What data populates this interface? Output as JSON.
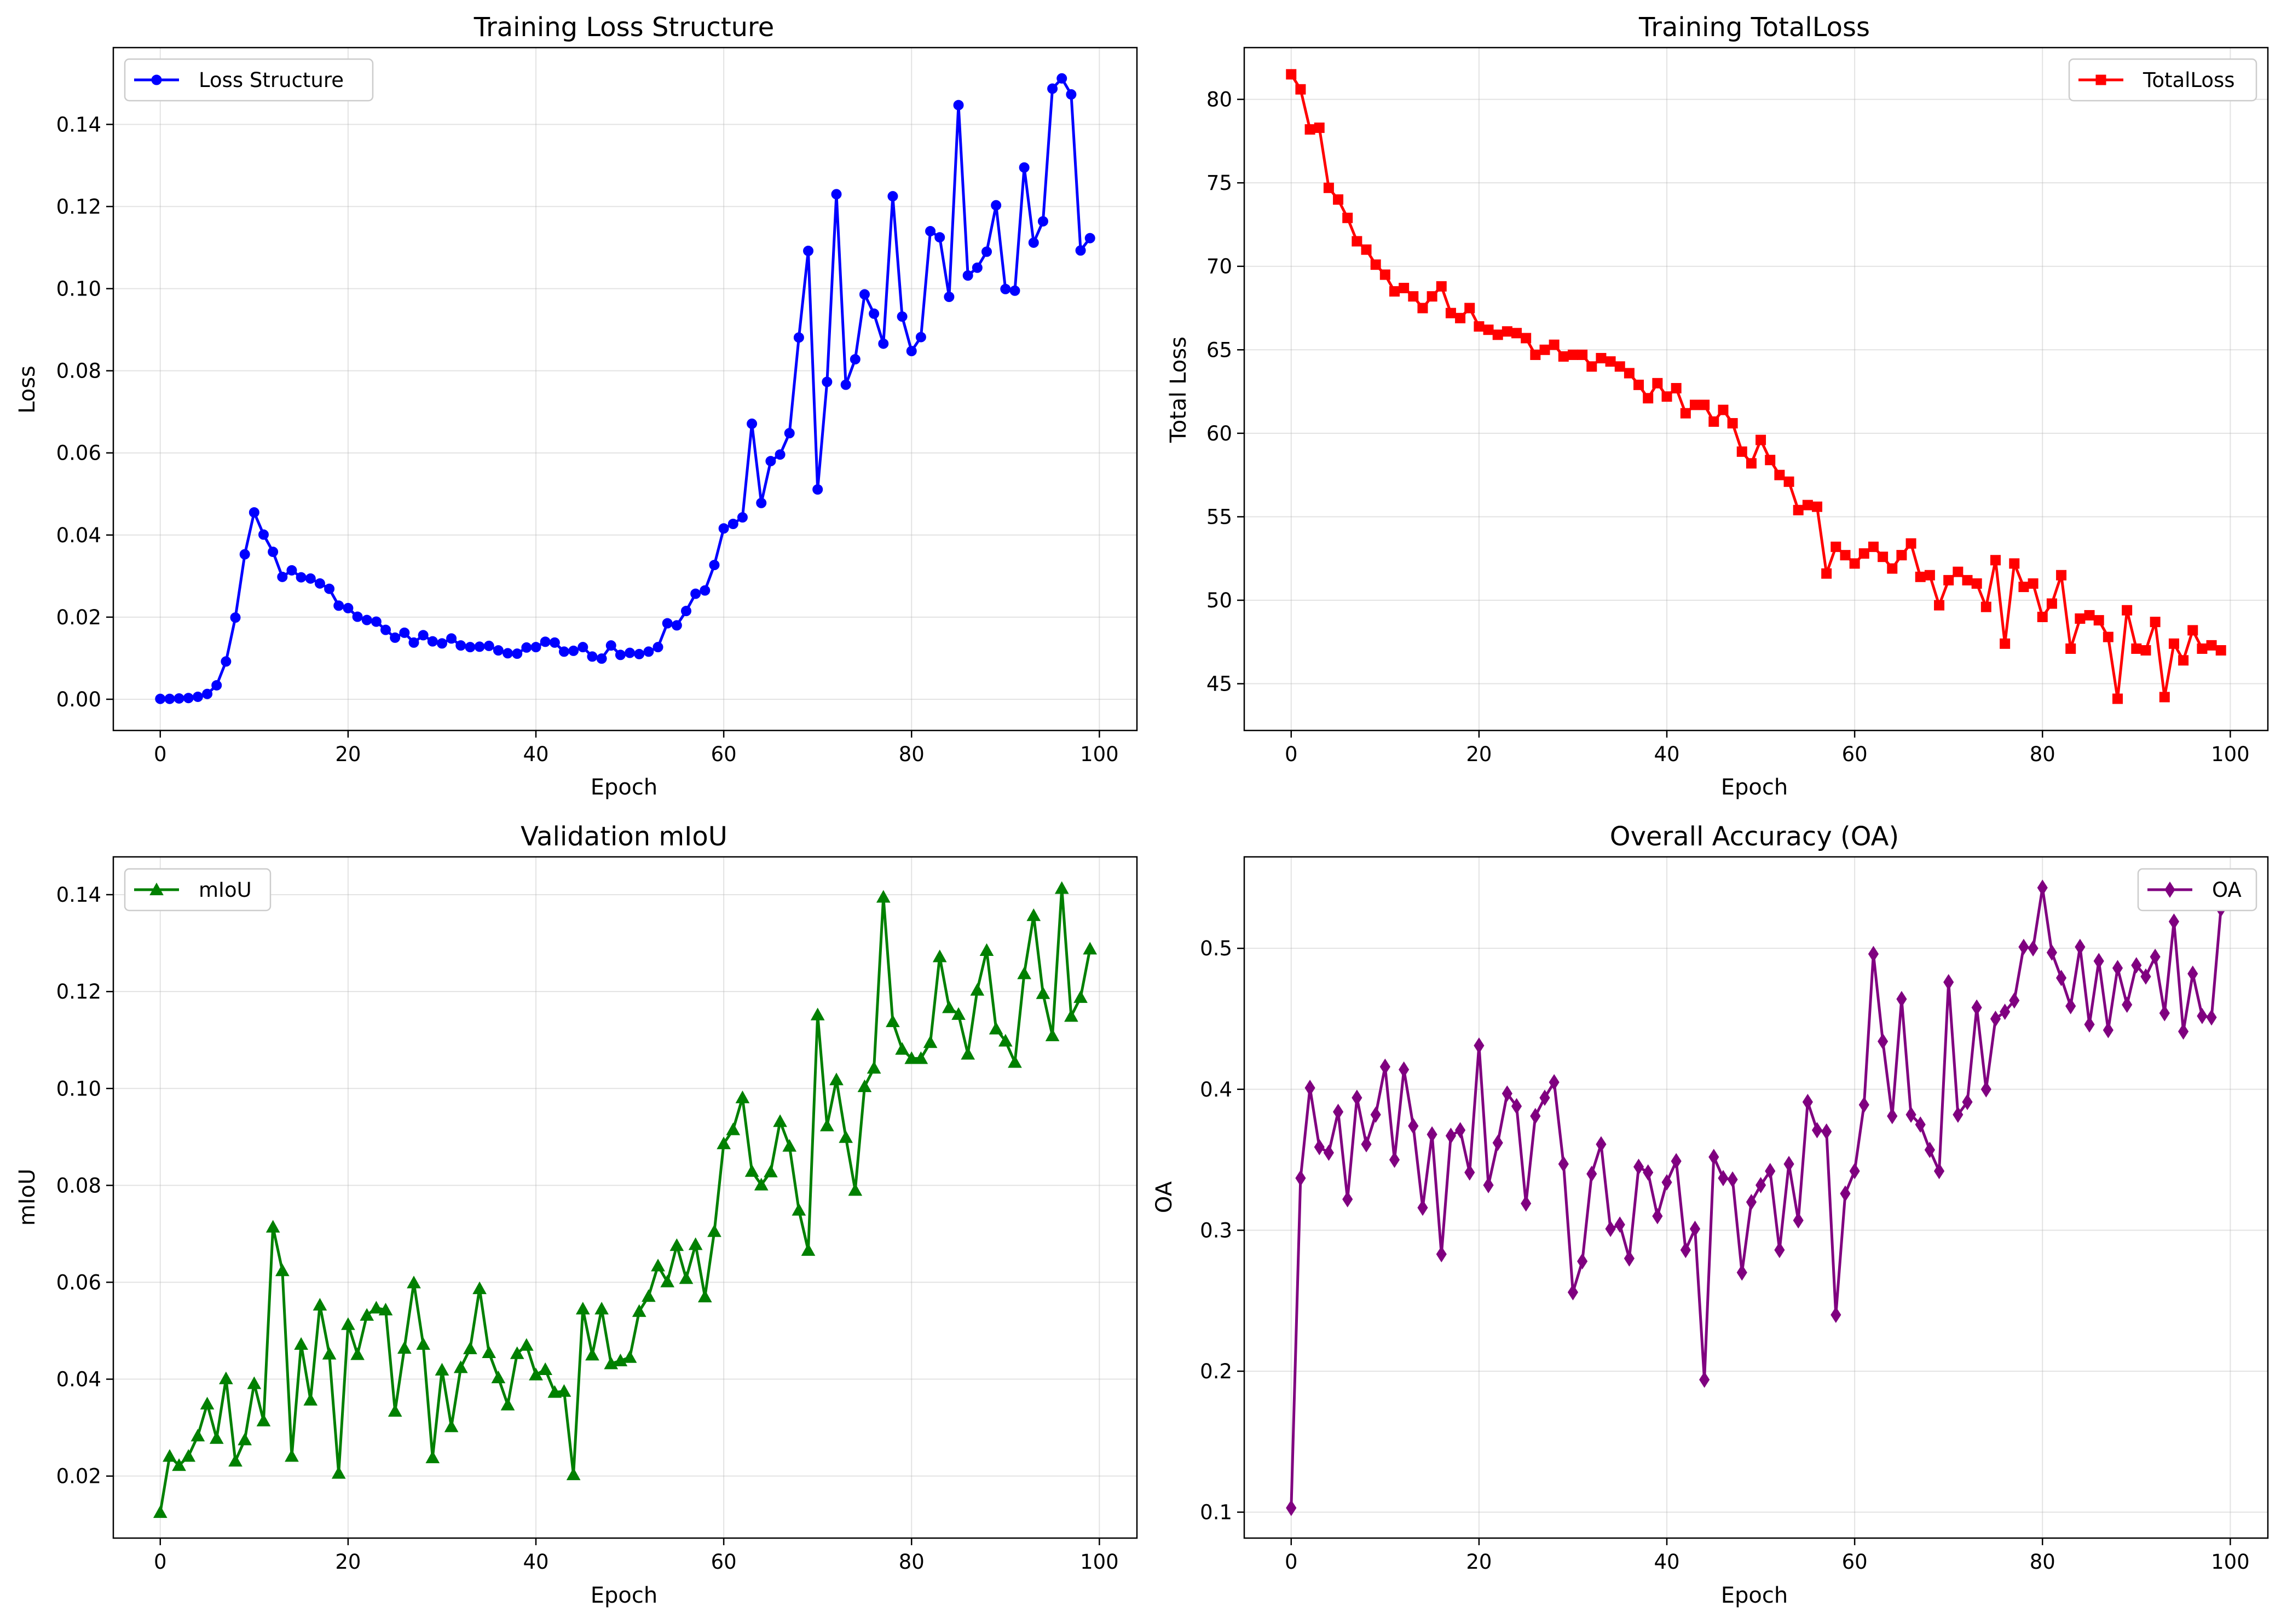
{
  "chart_data": [
    {
      "id": "loss_structure",
      "type": "line",
      "title": "Training Loss Structure",
      "xlabel": "Epoch",
      "ylabel": "Loss",
      "xlim": [
        -5,
        104
      ],
      "ylim": [
        -0.0076,
        0.1587
      ],
      "xticks": [
        0,
        20,
        40,
        60,
        80,
        100
      ],
      "xtick_labels": [
        "0",
        "20",
        "40",
        "60",
        "80",
        "100"
      ],
      "yticks": [
        0,
        0.02,
        0.04,
        0.06,
        0.08,
        0.1,
        0.12,
        0.14
      ],
      "ytick_labels": [
        "0.00",
        "0.02",
        "0.04",
        "0.06",
        "0.08",
        "0.10",
        "0.12",
        "0.14"
      ],
      "grid": true,
      "legend": "upper left",
      "series": [
        {
          "name": "Loss Structure",
          "color": "#0000ff",
          "marker": "circle",
          "x": [
            0,
            1,
            2,
            3,
            4,
            5,
            6,
            7,
            8,
            9,
            10,
            11,
            12,
            13,
            14,
            15,
            16,
            17,
            18,
            19,
            20,
            21,
            22,
            23,
            24,
            25,
            26,
            27,
            28,
            29,
            30,
            31,
            32,
            33,
            34,
            35,
            36,
            37,
            38,
            39,
            40,
            41,
            42,
            43,
            44,
            45,
            46,
            47,
            48,
            49,
            50,
            51,
            52,
            53,
            54,
            55,
            56,
            57,
            58,
            59,
            60,
            61,
            62,
            63,
            64,
            65,
            66,
            67,
            68,
            69,
            70,
            71,
            72,
            73,
            74,
            75,
            76,
            77,
            78,
            79,
            80,
            81,
            82,
            83,
            84,
            85,
            86,
            87,
            88,
            89,
            90,
            91,
            92,
            93,
            94,
            95,
            96,
            97,
            98,
            99
          ],
          "y": [
            0.0001,
            0.0001,
            0.0002,
            0.0003,
            0.0006,
            0.0013,
            0.0034,
            0.0092,
            0.0199,
            0.0353,
            0.0455,
            0.0401,
            0.0359,
            0.0298,
            0.0314,
            0.0297,
            0.0294,
            0.0282,
            0.0269,
            0.0228,
            0.0222,
            0.0201,
            0.0193,
            0.0189,
            0.0169,
            0.015,
            0.0162,
            0.0138,
            0.0156,
            0.0141,
            0.0136,
            0.0148,
            0.0131,
            0.0127,
            0.0128,
            0.013,
            0.0119,
            0.0112,
            0.0111,
            0.0126,
            0.0127,
            0.014,
            0.0138,
            0.0116,
            0.0118,
            0.0127,
            0.0104,
            0.0099,
            0.0131,
            0.0108,
            0.0113,
            0.011,
            0.0116,
            0.0127,
            0.0185,
            0.018,
            0.0215,
            0.0257,
            0.0265,
            0.0327,
            0.0416,
            0.0427,
            0.0443,
            0.0671,
            0.0478,
            0.058,
            0.0596,
            0.0648,
            0.0881,
            0.1092,
            0.0511,
            0.0773,
            0.123,
            0.0766,
            0.0828,
            0.0986,
            0.0939,
            0.0866,
            0.1225,
            0.0932,
            0.0848,
            0.0882,
            0.114,
            0.1125,
            0.098,
            0.1447,
            0.1032,
            0.1051,
            0.109,
            0.1203,
            0.0999,
            0.0995,
            0.1295,
            0.1112,
            0.1164,
            0.1487,
            0.1512,
            0.1473,
            0.1093,
            0.1123
          ]
        }
      ]
    },
    {
      "id": "total_loss",
      "type": "line",
      "title": "Training TotalLoss",
      "xlabel": "Epoch",
      "ylabel": "Total Loss",
      "xlim": [
        -5,
        104
      ],
      "ylim": [
        42.2,
        83.1
      ],
      "xticks": [
        0,
        20,
        40,
        60,
        80,
        100
      ],
      "xtick_labels": [
        "0",
        "20",
        "40",
        "60",
        "80",
        "100"
      ],
      "yticks": [
        45,
        50,
        55,
        60,
        65,
        70,
        75,
        80
      ],
      "ytick_labels": [
        "45",
        "50",
        "55",
        "60",
        "65",
        "70",
        "75",
        "80"
      ],
      "grid": true,
      "legend": "upper right",
      "series": [
        {
          "name": "TotalLoss",
          "color": "#ff0000",
          "marker": "square",
          "x": [
            0,
            1,
            2,
            3,
            4,
            5,
            6,
            7,
            8,
            9,
            10,
            11,
            12,
            13,
            14,
            15,
            16,
            17,
            18,
            19,
            20,
            21,
            22,
            23,
            24,
            25,
            26,
            27,
            28,
            29,
            30,
            31,
            32,
            33,
            34,
            35,
            36,
            37,
            38,
            39,
            40,
            41,
            42,
            43,
            44,
            45,
            46,
            47,
            48,
            49,
            50,
            51,
            52,
            53,
            54,
            55,
            56,
            57,
            58,
            59,
            60,
            61,
            62,
            63,
            64,
            65,
            66,
            67,
            68,
            69,
            70,
            71,
            72,
            73,
            74,
            75,
            76,
            77,
            78,
            79,
            80,
            81,
            82,
            83,
            84,
            85,
            86,
            87,
            88,
            89,
            90,
            91,
            92,
            93,
            94,
            95,
            96,
            97,
            98,
            99
          ],
          "y": [
            81.5,
            80.6,
            78.2,
            78.3,
            74.7,
            74.0,
            72.9,
            71.5,
            71.0,
            70.1,
            69.5,
            68.5,
            68.7,
            68.2,
            67.5,
            68.2,
            68.8,
            67.2,
            66.9,
            67.5,
            66.4,
            66.2,
            65.9,
            66.1,
            66.0,
            65.7,
            64.7,
            65.0,
            65.3,
            64.6,
            64.7,
            64.7,
            64.0,
            64.5,
            64.3,
            64.0,
            63.6,
            62.9,
            62.1,
            63.0,
            62.2,
            62.7,
            61.2,
            61.7,
            61.7,
            60.7,
            61.4,
            60.6,
            58.9,
            58.2,
            59.6,
            58.4,
            57.5,
            57.1,
            55.4,
            55.7,
            55.6,
            51.6,
            53.2,
            52.7,
            52.2,
            52.8,
            53.2,
            52.6,
            51.9,
            52.7,
            53.4,
            51.4,
            51.5,
            49.7,
            51.2,
            51.7,
            51.2,
            51.0,
            49.6,
            52.4,
            47.4,
            52.2,
            50.8,
            51.0,
            49.0,
            49.8,
            51.5,
            47.1,
            48.9,
            49.1,
            48.8,
            47.8,
            44.1,
            49.4,
            47.1,
            47.0,
            48.7,
            44.2,
            47.4,
            46.4,
            48.2,
            47.1,
            47.3,
            47.0
          ]
        }
      ]
    },
    {
      "id": "miou",
      "type": "line",
      "title": "Validation mIoU",
      "xlabel": "Epoch",
      "ylabel": "mIoU",
      "xlim": [
        -5,
        104
      ],
      "ylim": [
        0.0072,
        0.1478
      ],
      "xticks": [
        0,
        20,
        40,
        60,
        80,
        100
      ],
      "xtick_labels": [
        "0",
        "20",
        "40",
        "60",
        "80",
        "100"
      ],
      "yticks": [
        0.02,
        0.04,
        0.06,
        0.08,
        0.1,
        0.12,
        0.14
      ],
      "ytick_labels": [
        "0.02",
        "0.04",
        "0.06",
        "0.08",
        "0.10",
        "0.12",
        "0.14"
      ],
      "grid": true,
      "legend": "upper left",
      "series": [
        {
          "name": "mIoU",
          "color": "#008000",
          "marker": "triangle",
          "x": [
            0,
            1,
            2,
            3,
            4,
            5,
            6,
            7,
            8,
            9,
            10,
            11,
            12,
            13,
            14,
            15,
            16,
            17,
            18,
            19,
            20,
            21,
            22,
            23,
            24,
            25,
            26,
            27,
            28,
            29,
            30,
            31,
            32,
            33,
            34,
            35,
            36,
            37,
            38,
            39,
            40,
            41,
            42,
            43,
            44,
            45,
            46,
            47,
            48,
            49,
            50,
            51,
            52,
            53,
            54,
            55,
            56,
            57,
            58,
            59,
            60,
            61,
            62,
            63,
            64,
            65,
            66,
            67,
            68,
            69,
            70,
            71,
            72,
            73,
            74,
            75,
            76,
            77,
            78,
            79,
            80,
            81,
            82,
            83,
            84,
            85,
            86,
            87,
            88,
            89,
            90,
            91,
            92,
            93,
            94,
            95,
            96,
            97,
            98,
            99
          ],
          "y": [
            0.0125,
            0.0241,
            0.0222,
            0.0241,
            0.0283,
            0.0349,
            0.0278,
            0.0401,
            0.0231,
            0.0275,
            0.0391,
            0.0314,
            0.0714,
            0.0624,
            0.0241,
            0.0472,
            0.0357,
            0.0553,
            0.0452,
            0.0206,
            0.0513,
            0.0451,
            0.0532,
            0.0547,
            0.0543,
            0.0334,
            0.0464,
            0.0599,
            0.0472,
            0.0238,
            0.0419,
            0.0302,
            0.0424,
            0.0463,
            0.0587,
            0.0455,
            0.0403,
            0.0347,
            0.0453,
            0.047,
            0.0409,
            0.042,
            0.0373,
            0.0375,
            0.0203,
            0.0545,
            0.045,
            0.0545,
            0.0432,
            0.0438,
            0.0445,
            0.054,
            0.0571,
            0.0634,
            0.0601,
            0.0676,
            0.0608,
            0.0678,
            0.057,
            0.0705,
            0.0886,
            0.0915,
            0.0981,
            0.0829,
            0.0801,
            0.0828,
            0.0932,
            0.0881,
            0.0749,
            0.0666,
            0.1152,
            0.0923,
            0.1018,
            0.0899,
            0.079,
            0.1004,
            0.1042,
            0.1395,
            0.1138,
            0.1081,
            0.1062,
            0.1062,
            0.1095,
            0.1272,
            0.1167,
            0.1153,
            0.1071,
            0.1203,
            0.1285,
            0.1123,
            0.1098,
            0.1054,
            0.1237,
            0.1357,
            0.1196,
            0.1109,
            0.1413,
            0.1149,
            0.1188,
            0.1288
          ]
        }
      ]
    },
    {
      "id": "oa",
      "type": "line",
      "title": "Overall Accuracy (OA)",
      "xlabel": "Epoch",
      "ylabel": "OA",
      "xlim": [
        -5,
        104
      ],
      "ylim": [
        0.0816,
        0.5649
      ],
      "xticks": [
        0,
        20,
        40,
        60,
        80,
        100
      ],
      "xtick_labels": [
        "0",
        "20",
        "40",
        "60",
        "80",
        "100"
      ],
      "yticks": [
        0.1,
        0.2,
        0.3,
        0.4,
        0.5
      ],
      "ytick_labels": [
        "0.1",
        "0.2",
        "0.3",
        "0.4",
        "0.5"
      ],
      "grid": true,
      "legend": "upper right",
      "series": [
        {
          "name": "OA",
          "color": "#800080",
          "marker": "diamond",
          "x": [
            0,
            1,
            2,
            3,
            4,
            5,
            6,
            7,
            8,
            9,
            10,
            11,
            12,
            13,
            14,
            15,
            16,
            17,
            18,
            19,
            20,
            21,
            22,
            23,
            24,
            25,
            26,
            27,
            28,
            29,
            30,
            31,
            32,
            33,
            34,
            35,
            36,
            37,
            38,
            39,
            40,
            41,
            42,
            43,
            44,
            45,
            46,
            47,
            48,
            49,
            50,
            51,
            52,
            53,
            54,
            55,
            56,
            57,
            58,
            59,
            60,
            61,
            62,
            63,
            64,
            65,
            66,
            67,
            68,
            69,
            70,
            71,
            72,
            73,
            74,
            75,
            76,
            77,
            78,
            79,
            80,
            81,
            82,
            83,
            84,
            85,
            86,
            87,
            88,
            89,
            90,
            91,
            92,
            93,
            94,
            95,
            96,
            97,
            98,
            99
          ],
          "y": [
            0.103,
            0.337,
            0.401,
            0.359,
            0.355,
            0.384,
            0.322,
            0.394,
            0.361,
            0.382,
            0.416,
            0.35,
            0.414,
            0.374,
            0.316,
            0.368,
            0.283,
            0.367,
            0.371,
            0.341,
            0.431,
            0.332,
            0.362,
            0.397,
            0.388,
            0.319,
            0.381,
            0.394,
            0.405,
            0.347,
            0.256,
            0.278,
            0.34,
            0.361,
            0.301,
            0.304,
            0.28,
            0.345,
            0.341,
            0.31,
            0.334,
            0.349,
            0.286,
            0.301,
            0.194,
            0.352,
            0.337,
            0.336,
            0.27,
            0.32,
            0.332,
            0.342,
            0.286,
            0.347,
            0.307,
            0.391,
            0.371,
            0.37,
            0.24,
            0.326,
            0.342,
            0.389,
            0.496,
            0.434,
            0.381,
            0.464,
            0.382,
            0.375,
            0.357,
            0.342,
            0.476,
            0.382,
            0.391,
            0.458,
            0.4,
            0.45,
            0.455,
            0.463,
            0.501,
            0.5,
            0.543,
            0.497,
            0.479,
            0.459,
            0.501,
            0.446,
            0.491,
            0.442,
            0.486,
            0.46,
            0.488,
            0.48,
            0.494,
            0.454,
            0.519,
            0.441,
            0.482,
            0.452,
            0.451,
            0.528
          ]
        }
      ]
    }
  ]
}
